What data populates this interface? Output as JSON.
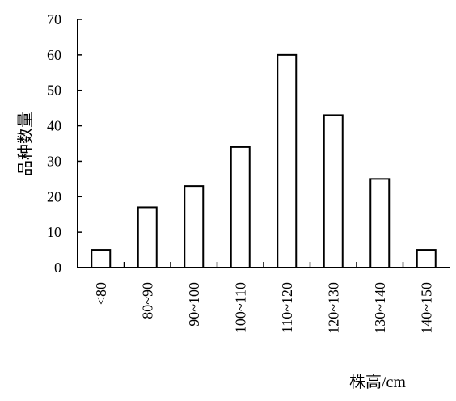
{
  "chart_data": {
    "type": "bar",
    "categories": [
      "<80",
      "80~90",
      "90~100",
      "100~110",
      "110~120",
      "120~130",
      "130~140",
      "140~150"
    ],
    "values": [
      5,
      17,
      23,
      34,
      60,
      43,
      25,
      5
    ],
    "title": "",
    "xlabel": "株高/cm",
    "ylabel": "品种数量",
    "ylim": [
      0,
      70
    ],
    "yticks": [
      0,
      10,
      20,
      30,
      40,
      50,
      60,
      70
    ],
    "grid": false,
    "legend": "none",
    "bar_fill": "#ffffff",
    "bar_stroke": "#000000"
  }
}
